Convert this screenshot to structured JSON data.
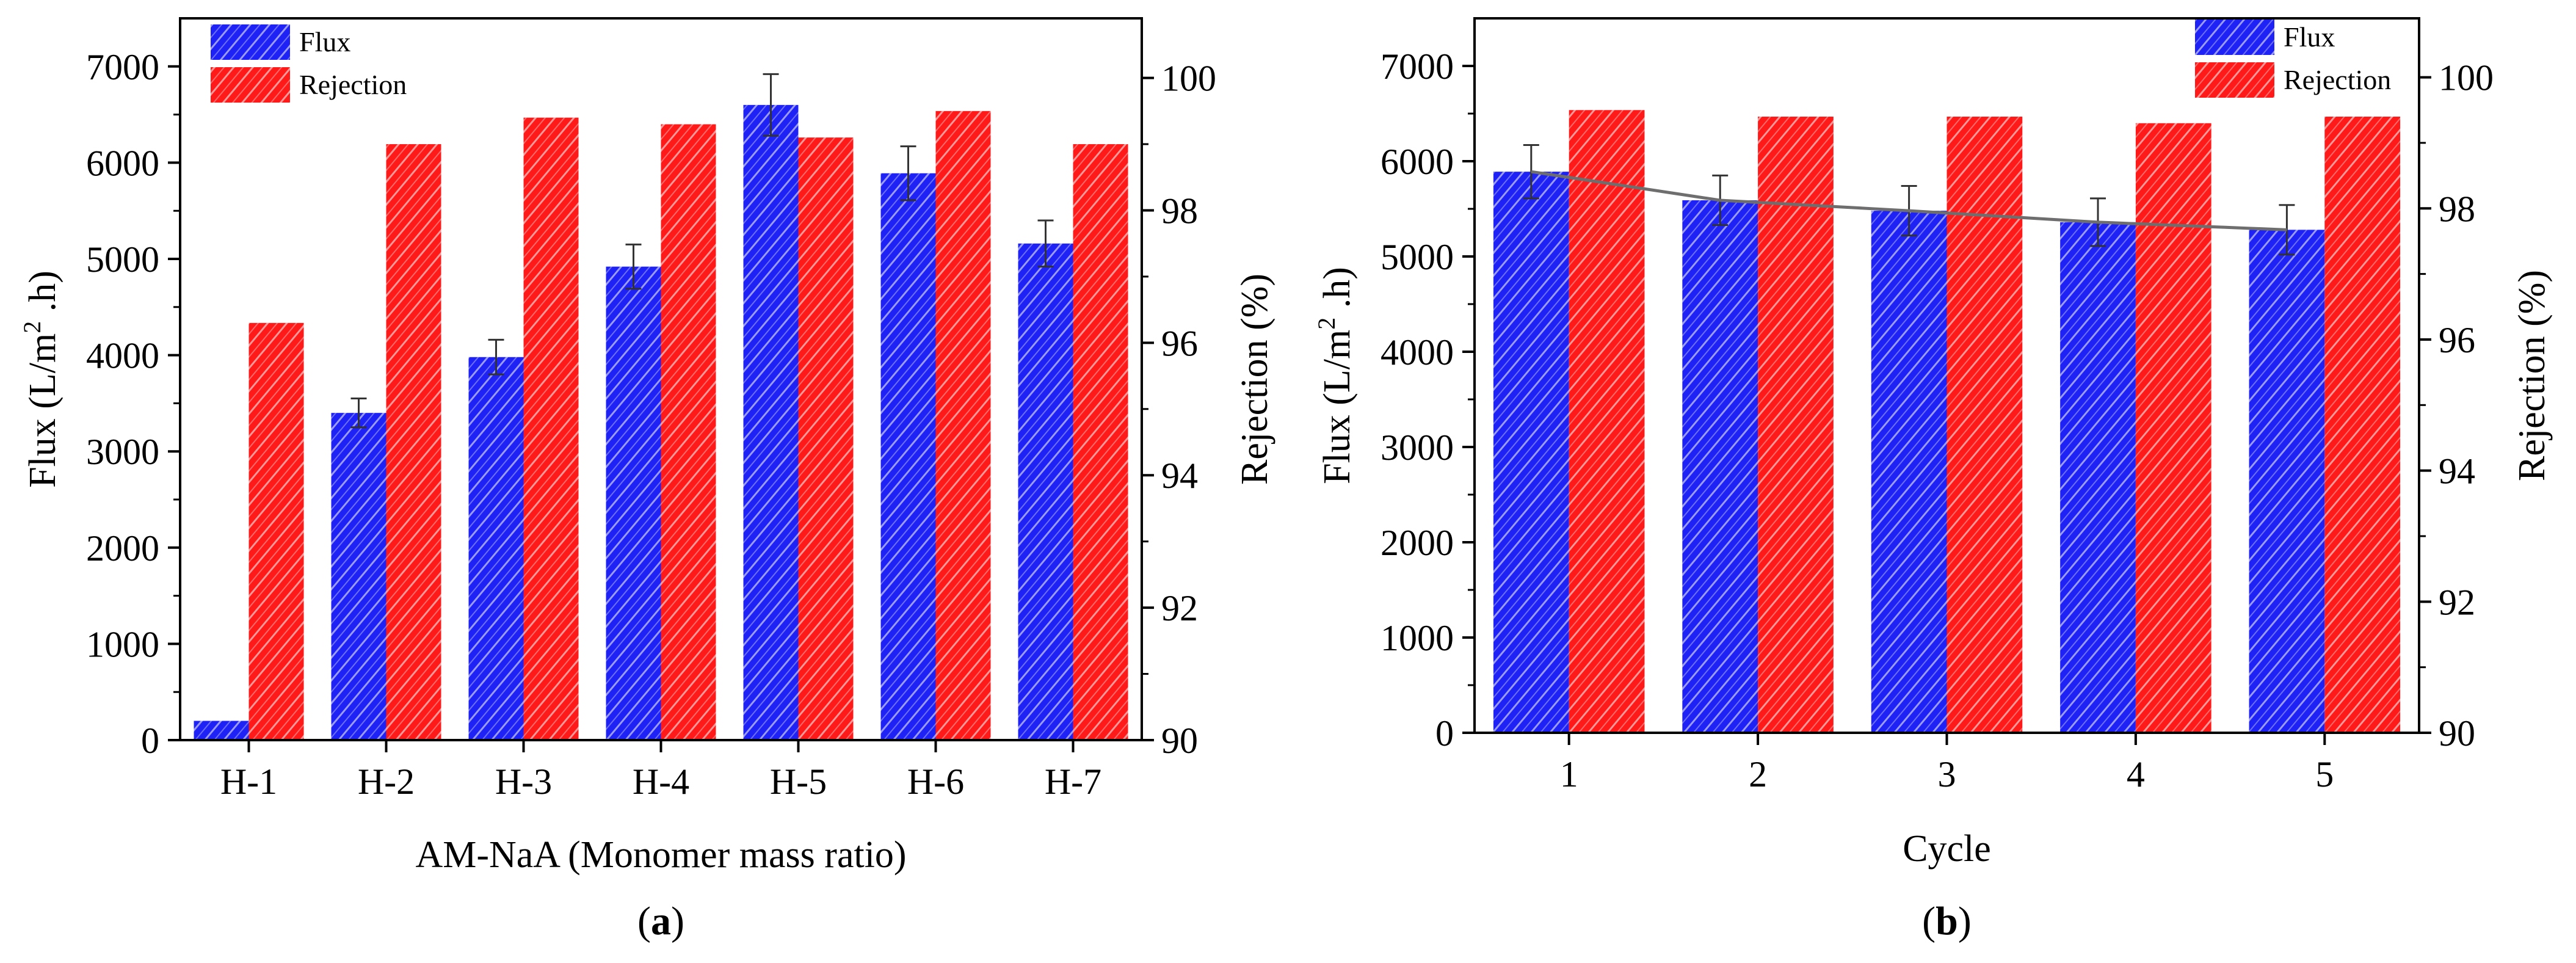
{
  "colors": {
    "flux": "#1e22f5",
    "rejection": "#ff1a1a",
    "axis": "#000000",
    "trend": "#6e6e6e",
    "hatch": "#ffffff"
  },
  "chart_data": [
    {
      "type": "bar",
      "panel_label": "(a)",
      "panel_letter": "a",
      "categories": [
        "H-1",
        "H-2",
        "H-3",
        "H-4",
        "H-5",
        "H-6",
        "H-7"
      ],
      "xlabel": "AM-NaA (Monomer mass ratio)",
      "ylabel_left": "Flux (L/m",
      "ylabel_left_sup": "2",
      "ylabel_left_tail": " .h)",
      "ylabel_right": "Rejection (%)",
      "ylim_left": [
        0,
        7500
      ],
      "yticks_left": [
        0,
        1000,
        2000,
        3000,
        4000,
        5000,
        6000,
        7000
      ],
      "ylim_right": [
        90,
        100.9
      ],
      "yticks_right": [
        90,
        92,
        94,
        96,
        98,
        100
      ],
      "legend": [
        "Flux",
        "Rejection"
      ],
      "legend_position": "top-left",
      "series": [
        {
          "name": "Flux",
          "axis": "left",
          "values": [
            200,
            3400,
            3980,
            4920,
            6600,
            5890,
            5160
          ],
          "errors": [
            0,
            150,
            180,
            230,
            320,
            280,
            240
          ]
        },
        {
          "name": "Rejection",
          "axis": "right",
          "values": [
            96.3,
            99.0,
            99.4,
            99.3,
            99.1,
            99.5,
            99.0
          ]
        }
      ]
    },
    {
      "type": "bar",
      "panel_label": "(b)",
      "panel_letter": "b",
      "categories": [
        "1",
        "2",
        "3",
        "4",
        "5"
      ],
      "xlabel": "Cycle",
      "ylabel_left": "Flux (L/m",
      "ylabel_left_sup": "2",
      "ylabel_left_tail": " .h)",
      "ylabel_right": "Rejection (%)",
      "ylim_left": [
        0,
        7500
      ],
      "yticks_left": [
        0,
        1000,
        2000,
        3000,
        4000,
        5000,
        6000,
        7000
      ],
      "ylim_right": [
        90,
        100.9
      ],
      "yticks_right": [
        90,
        92,
        94,
        96,
        98,
        100
      ],
      "legend": [
        "Flux",
        "Rejection"
      ],
      "legend_position": "top-right",
      "trend_line": true,
      "series": [
        {
          "name": "Flux",
          "axis": "left",
          "values": [
            5890,
            5590,
            5480,
            5360,
            5280
          ],
          "errors": [
            280,
            260,
            260,
            250,
            260
          ]
        },
        {
          "name": "Rejection",
          "axis": "right",
          "values": [
            99.5,
            99.4,
            99.4,
            99.3,
            99.4
          ]
        }
      ]
    }
  ]
}
